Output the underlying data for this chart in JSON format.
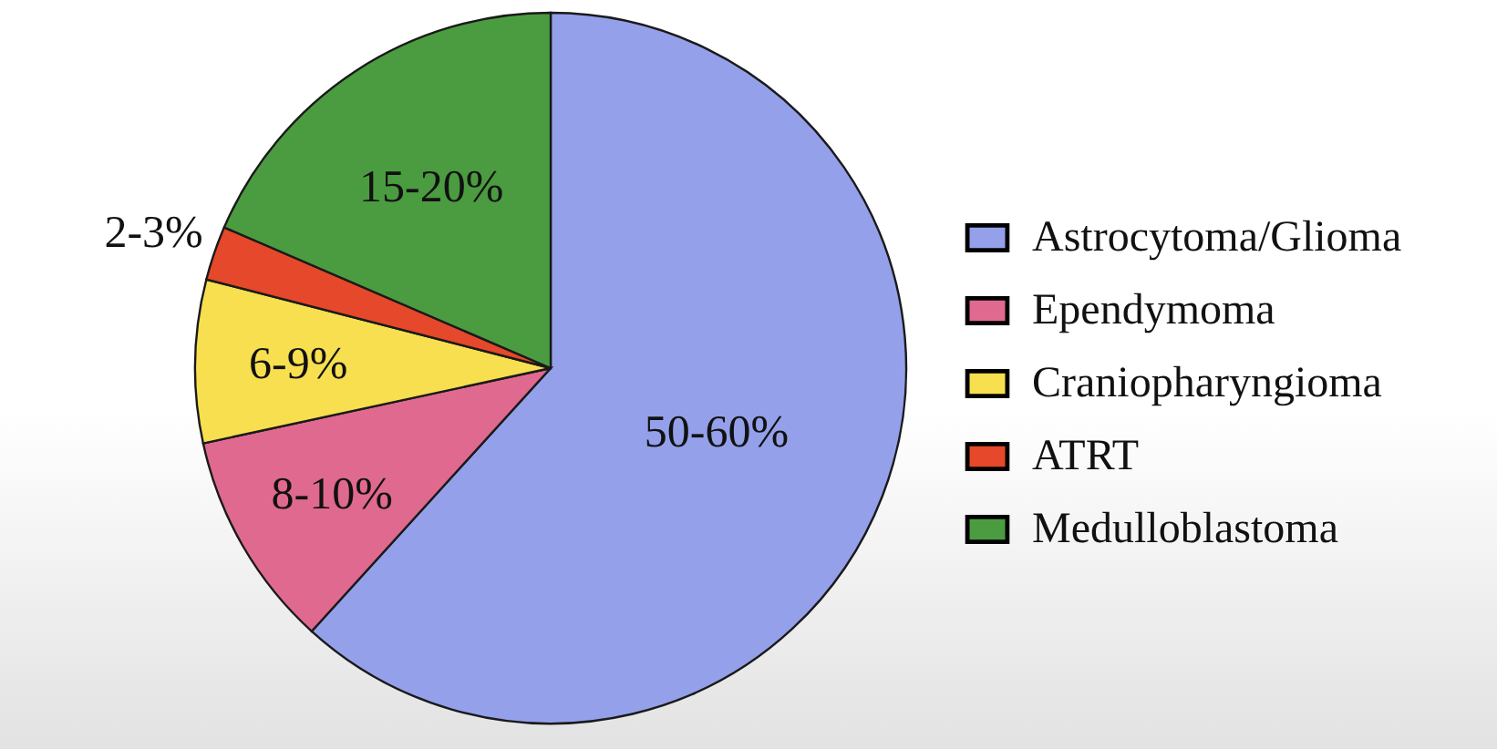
{
  "chart_data": {
    "type": "pie",
    "categories": [
      "Astrocytoma/Glioma",
      "Ependymoma",
      "Craniopharyngioma",
      "ATRT",
      "Medulloblastoma"
    ],
    "values": [
      50,
      8,
      6,
      2,
      15
    ],
    "colors": [
      "#94a0ea",
      "#e0698f",
      "#f7df4f",
      "#e5482a",
      "#4b9c40"
    ],
    "value_labels": [
      "50-60%",
      "8-10%",
      "6-9%",
      "2-3%",
      "15-20%"
    ],
    "legend": "right"
  }
}
